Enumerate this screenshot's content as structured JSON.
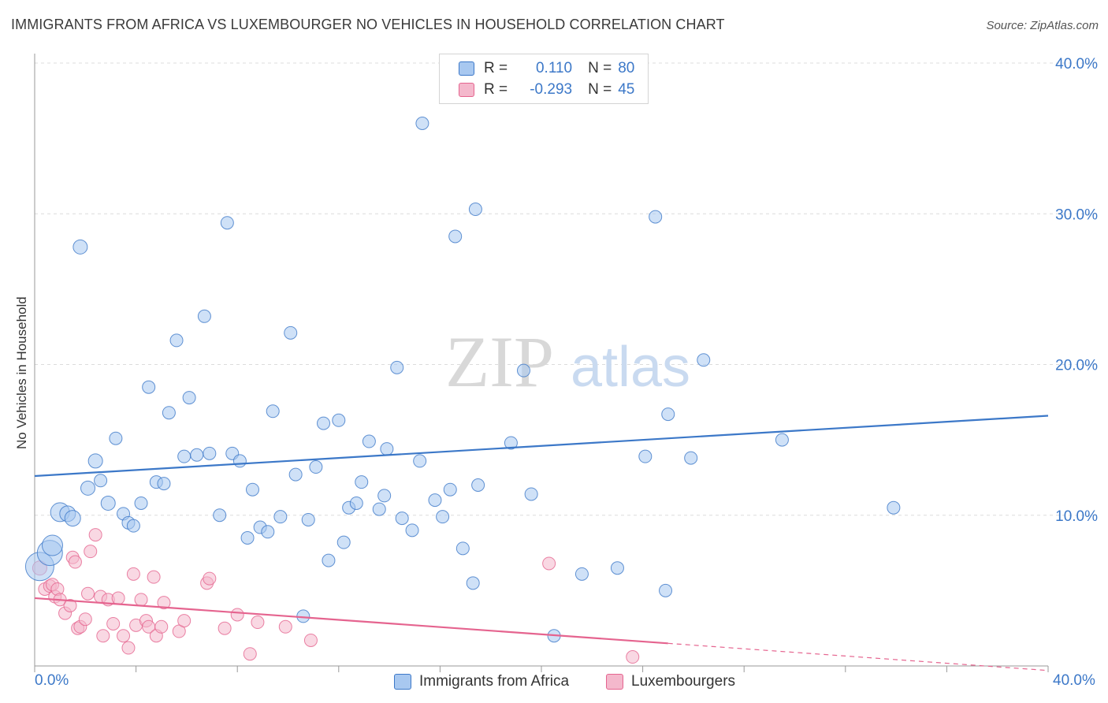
{
  "title": "IMMIGRANTS FROM AFRICA VS LUXEMBOURGER NO VEHICLES IN HOUSEHOLD CORRELATION CHART",
  "source": "Source: ZipAtlas.com",
  "watermark": {
    "zip": "ZIP",
    "atlas": "atlas"
  },
  "legend_stats": [
    {
      "r_label": "R =",
      "r_value": "0.110",
      "n_label": "N =",
      "n_value": "80",
      "color": "#a8c8f0"
    },
    {
      "r_label": "R =",
      "r_value": "-0.293",
      "n_label": "N =",
      "n_value": "45",
      "color": "#f4b8cc"
    }
  ],
  "bottom_legend": [
    {
      "label": "Immigrants from Africa",
      "color": "#a8c8f0"
    },
    {
      "label": "Luxembourgers",
      "color": "#f4b8cc"
    }
  ],
  "x_tick_min": "0.0%",
  "x_tick_max": "40.0%",
  "chart_data": {
    "type": "scatter",
    "title": "IMMIGRANTS FROM AFRICA VS LUXEMBOURGER NO VEHICLES IN HOUSEHOLD CORRELATION CHART",
    "xlabel": "",
    "ylabel": "No Vehicles in Household",
    "xlim": [
      0,
      40
    ],
    "ylim": [
      0,
      40
    ],
    "y_ticks": [
      "10.0%",
      "20.0%",
      "30.0%",
      "40.0%"
    ],
    "y_tick_values": [
      10,
      20,
      30,
      40
    ],
    "grid": true,
    "legend_position": "top-center",
    "colors": {
      "blue": "#3c78c8",
      "blue_fill": "#a8c8f0",
      "pink": "#e5648f",
      "pink_fill": "#f4b8cc"
    },
    "series": [
      {
        "name": "Immigrants from Africa",
        "color": "#3c78c8",
        "points": [
          [
            0.2,
            6.6,
            18
          ],
          [
            0.6,
            7.5,
            16
          ],
          [
            0.7,
            8.0,
            13
          ],
          [
            1.0,
            10.2,
            12
          ],
          [
            1.3,
            10.1,
            10
          ],
          [
            1.5,
            9.8,
            10
          ],
          [
            1.8,
            27.8,
            9
          ],
          [
            2.1,
            11.8,
            9
          ],
          [
            2.4,
            13.6,
            9
          ],
          [
            2.6,
            12.3,
            8
          ],
          [
            2.9,
            10.8,
            9
          ],
          [
            3.2,
            15.1,
            8
          ],
          [
            3.5,
            10.1,
            8
          ],
          [
            3.7,
            9.5,
            8
          ],
          [
            3.9,
            9.3,
            8
          ],
          [
            4.2,
            10.8,
            8
          ],
          [
            4.5,
            18.5,
            8
          ],
          [
            4.8,
            12.2,
            8
          ],
          [
            5.1,
            12.1,
            8
          ],
          [
            5.3,
            16.8,
            8
          ],
          [
            5.6,
            21.6,
            8
          ],
          [
            5.9,
            13.9,
            8
          ],
          [
            6.1,
            17.8,
            8
          ],
          [
            6.4,
            14.0,
            8
          ],
          [
            6.7,
            23.2,
            8
          ],
          [
            6.9,
            14.1,
            8
          ],
          [
            7.3,
            10.0,
            8
          ],
          [
            7.6,
            29.4,
            8
          ],
          [
            7.8,
            14.1,
            8
          ],
          [
            8.1,
            13.6,
            8
          ],
          [
            8.4,
            8.5,
            8
          ],
          [
            8.6,
            11.7,
            8
          ],
          [
            8.9,
            9.2,
            8
          ],
          [
            9.2,
            8.9,
            8
          ],
          [
            9.4,
            16.9,
            8
          ],
          [
            9.7,
            9.9,
            8
          ],
          [
            10.1,
            22.1,
            8
          ],
          [
            10.3,
            12.7,
            8
          ],
          [
            10.6,
            3.3,
            8
          ],
          [
            10.8,
            9.7,
            8
          ],
          [
            11.1,
            13.2,
            8
          ],
          [
            11.4,
            16.1,
            8
          ],
          [
            11.6,
            7.0,
            8
          ],
          [
            12.0,
            16.3,
            8
          ],
          [
            12.2,
            8.2,
            8
          ],
          [
            12.4,
            10.5,
            8
          ],
          [
            12.7,
            10.8,
            8
          ],
          [
            12.9,
            12.2,
            8
          ],
          [
            13.2,
            14.9,
            8
          ],
          [
            13.6,
            10.4,
            8
          ],
          [
            13.8,
            11.3,
            8
          ],
          [
            13.9,
            14.4,
            8
          ],
          [
            14.3,
            19.8,
            8
          ],
          [
            14.5,
            9.8,
            8
          ],
          [
            14.9,
            9.0,
            8
          ],
          [
            15.2,
            13.6,
            8
          ],
          [
            15.3,
            36.0,
            8
          ],
          [
            15.8,
            11.0,
            8
          ],
          [
            16.1,
            9.9,
            8
          ],
          [
            16.4,
            11.7,
            8
          ],
          [
            16.6,
            28.5,
            8
          ],
          [
            16.9,
            7.8,
            8
          ],
          [
            17.3,
            5.5,
            8
          ],
          [
            17.4,
            30.3,
            8
          ],
          [
            17.5,
            12.0,
            8
          ],
          [
            18.8,
            14.8,
            8
          ],
          [
            19.3,
            19.6,
            8
          ],
          [
            19.6,
            11.4,
            8
          ],
          [
            20.5,
            2.0,
            8
          ],
          [
            21.6,
            6.1,
            8
          ],
          [
            23.0,
            6.5,
            8
          ],
          [
            24.1,
            13.9,
            8
          ],
          [
            24.5,
            29.8,
            8
          ],
          [
            24.9,
            5.0,
            8
          ],
          [
            25.0,
            16.7,
            8
          ],
          [
            25.9,
            13.8,
            8
          ],
          [
            26.4,
            20.3,
            8
          ],
          [
            29.5,
            15.0,
            8
          ],
          [
            33.9,
            10.5,
            8
          ],
          [
            10.0,
            9.7,
            0
          ]
        ]
      },
      {
        "name": "Luxembourgers",
        "color": "#e5648f",
        "points": [
          [
            0.2,
            6.5,
            9
          ],
          [
            0.4,
            5.1,
            8
          ],
          [
            0.6,
            5.3,
            8
          ],
          [
            0.7,
            5.4,
            8
          ],
          [
            0.8,
            4.6,
            8
          ],
          [
            0.9,
            5.1,
            8
          ],
          [
            1.0,
            4.4,
            8
          ],
          [
            1.2,
            3.5,
            8
          ],
          [
            1.4,
            4.0,
            8
          ],
          [
            1.5,
            7.2,
            8
          ],
          [
            1.6,
            6.9,
            8
          ],
          [
            1.7,
            2.5,
            8
          ],
          [
            1.8,
            2.6,
            8
          ],
          [
            2.0,
            3.1,
            8
          ],
          [
            2.1,
            4.8,
            8
          ],
          [
            2.2,
            7.6,
            8
          ],
          [
            2.4,
            8.7,
            8
          ],
          [
            2.6,
            4.6,
            8
          ],
          [
            2.7,
            2.0,
            8
          ],
          [
            2.9,
            4.4,
            8
          ],
          [
            3.1,
            2.8,
            8
          ],
          [
            3.3,
            4.5,
            8
          ],
          [
            3.5,
            2.0,
            8
          ],
          [
            3.7,
            1.2,
            8
          ],
          [
            3.9,
            6.1,
            8
          ],
          [
            4.0,
            2.7,
            8
          ],
          [
            4.2,
            4.4,
            8
          ],
          [
            4.4,
            3.0,
            8
          ],
          [
            4.5,
            2.6,
            8
          ],
          [
            4.7,
            5.9,
            8
          ],
          [
            4.8,
            2.0,
            8
          ],
          [
            5.0,
            2.6,
            8
          ],
          [
            5.1,
            4.2,
            8
          ],
          [
            5.7,
            2.3,
            8
          ],
          [
            5.9,
            3.0,
            8
          ],
          [
            6.8,
            5.5,
            8
          ],
          [
            6.9,
            5.8,
            8
          ],
          [
            7.5,
            2.5,
            8
          ],
          [
            8.0,
            3.4,
            8
          ],
          [
            8.5,
            0.8,
            8
          ],
          [
            8.8,
            2.9,
            8
          ],
          [
            9.9,
            2.6,
            8
          ],
          [
            10.9,
            1.7,
            8
          ],
          [
            20.3,
            6.8,
            8
          ],
          [
            23.6,
            0.6,
            8
          ]
        ]
      }
    ],
    "trend_lines": [
      {
        "series": "Immigrants from Africa",
        "x": [
          0,
          40
        ],
        "y": [
          12.6,
          16.6
        ],
        "style": "solid"
      },
      {
        "series": "Luxembourgers",
        "x": [
          0,
          25.0
        ],
        "y": [
          4.5,
          1.5
        ],
        "style": "solid"
      },
      {
        "series": "Luxembourgers",
        "x": [
          25.0,
          40
        ],
        "y": [
          1.5,
          -0.3
        ],
        "style": "dashed"
      }
    ]
  }
}
